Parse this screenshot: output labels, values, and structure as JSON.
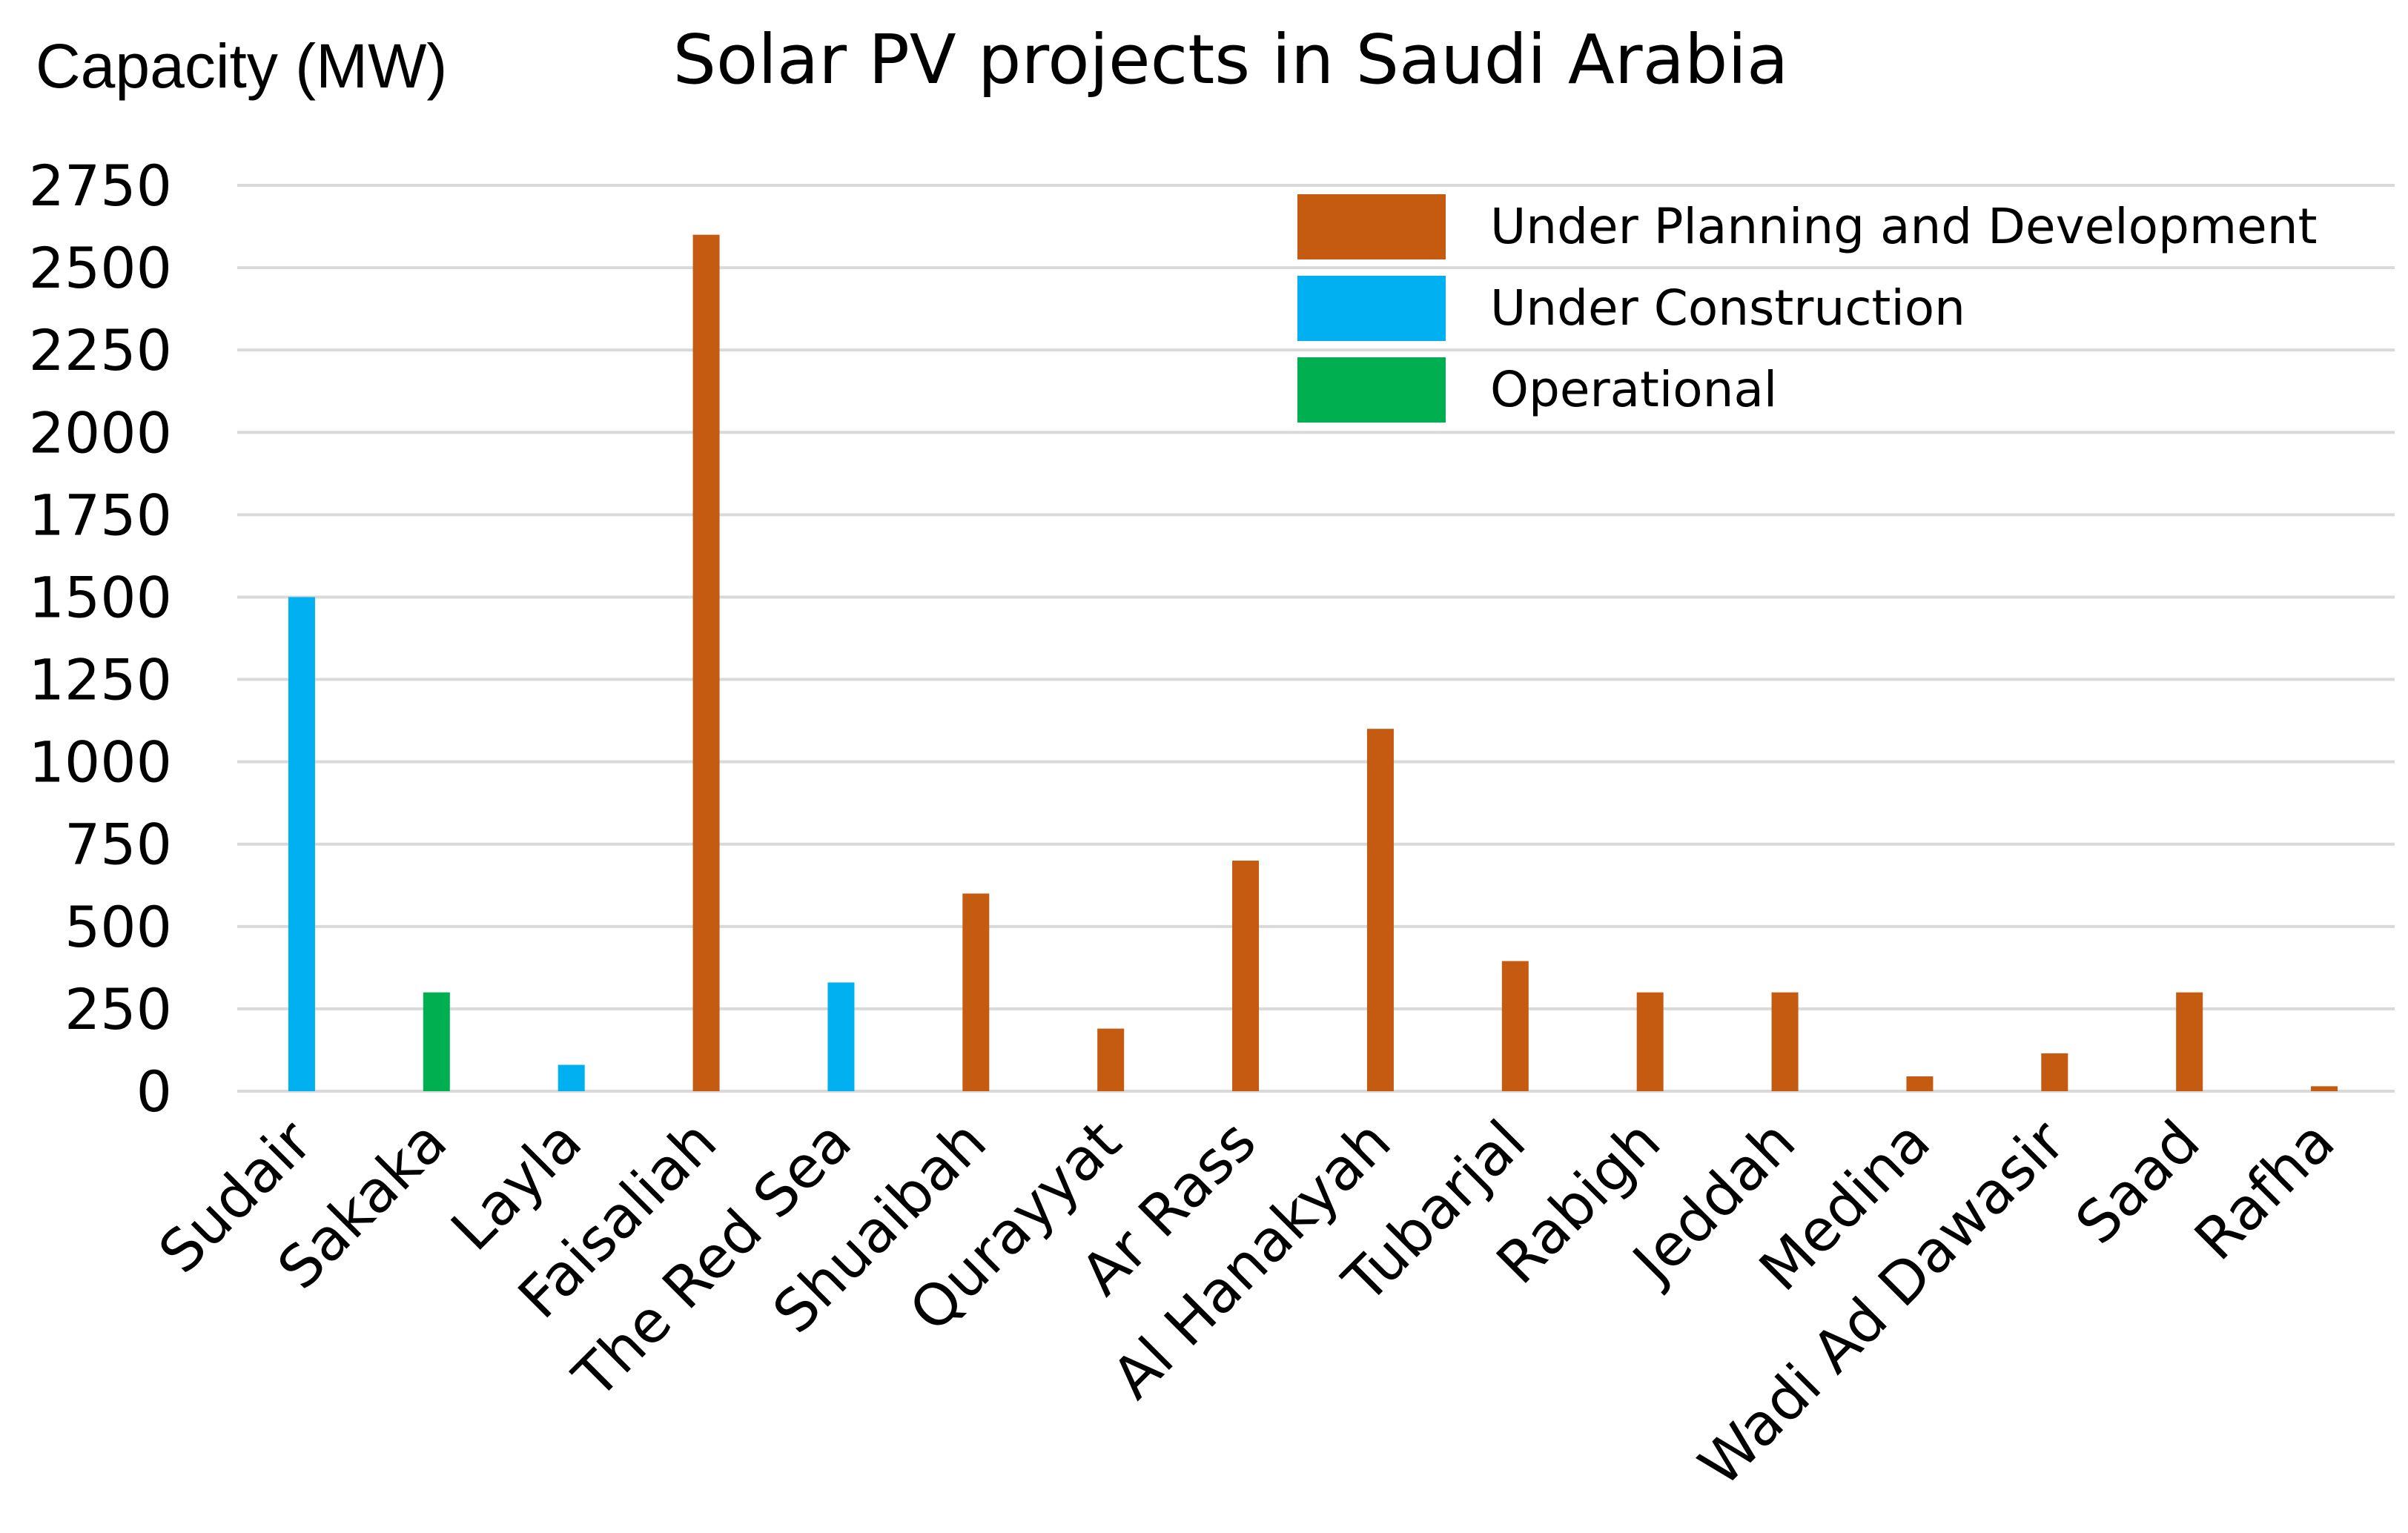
{
  "chart_data": {
    "type": "bar",
    "title": "Solar PV projects in Saudi Arabia",
    "ylabel": "Capacity (MW)",
    "xlabel": "",
    "ylim": [
      0,
      2750
    ],
    "yticks": [
      0,
      250,
      500,
      750,
      1000,
      1250,
      1500,
      1750,
      2000,
      2250,
      2500,
      2750
    ],
    "grid": true,
    "legend_position": "top-right",
    "categories": [
      "Sudair",
      "Sakaka",
      "Layla",
      "Faisaliah",
      "The Red Sea",
      "Shuaibah",
      "Qurayyat",
      "Ar Rass",
      "Al Hanakyah",
      "Tubarjal",
      "Rabigh",
      "Jeddah",
      "Medina",
      "Wadi Ad Dawasir",
      "Saad",
      "Rafha"
    ],
    "values": [
      1500,
      300,
      80,
      2600,
      330,
      600,
      190,
      700,
      1100,
      395,
      300,
      300,
      45,
      115,
      300,
      15
    ],
    "status": [
      "Under Construction",
      "Operational",
      "Under Construction",
      "Under Planning and Development",
      "Under Construction",
      "Under Planning and Development",
      "Under Planning and Development",
      "Under Planning and Development",
      "Under Planning and Development",
      "Under Planning and Development",
      "Under Planning and Development",
      "Under Planning and Development",
      "Under Planning and Development",
      "Under Planning and Development",
      "Under Planning and Development",
      "Under Planning and Development"
    ],
    "legend": [
      {
        "name": "Under Planning and Development",
        "color": "#c55a11"
      },
      {
        "name": "Under Construction",
        "color": "#00b0f0"
      },
      {
        "name": "Operational",
        "color": "#00b050"
      }
    ]
  }
}
